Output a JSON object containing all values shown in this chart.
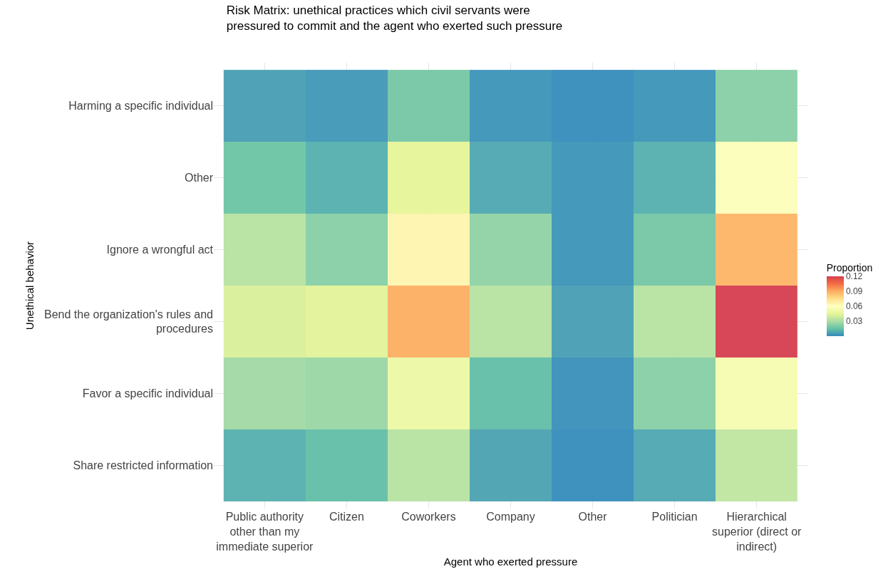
{
  "chart_data": {
    "type": "heatmap",
    "title": "Risk Matrix: unethical practices which civil servants were\npressured to commit and the agent who exerted such pressure",
    "xlabel": "Agent who exerted pressure",
    "ylabel": "Unethical behavior",
    "clabel": "Proportion",
    "categories": [
      "Public authority\nother than my\nimmediate superior",
      "Citizen",
      "Coworkers",
      "Company",
      "Other",
      "Politician",
      "Hierarchical\nsuperior (direct or\nindirect)"
    ],
    "y_categories": [
      "Harming a specific individual",
      "Other",
      "Ignore a wrongful act",
      "Bend the organization's rules and\nprocedures",
      "Favor a specific individual",
      "Share restricted information"
    ],
    "cells": [
      [
        0.006,
        0.004,
        0.018,
        0.003,
        0.001,
        0.003,
        0.022
      ],
      [
        0.016,
        0.01,
        0.045,
        0.008,
        0.003,
        0.01,
        0.058
      ],
      [
        0.033,
        0.022,
        0.065,
        0.024,
        0.003,
        0.018,
        0.088
      ],
      [
        0.042,
        0.044,
        0.09,
        0.033,
        0.006,
        0.033,
        0.12
      ],
      [
        0.028,
        0.026,
        0.05,
        0.014,
        0.002,
        0.022,
        0.055
      ],
      [
        0.01,
        0.014,
        0.033,
        0.007,
        0.001,
        0.008,
        0.035
      ]
    ],
    "clim": [
      0,
      0.12
    ],
    "cticks": [
      0.03,
      0.06,
      0.09,
      0.12
    ],
    "grid": true
  }
}
